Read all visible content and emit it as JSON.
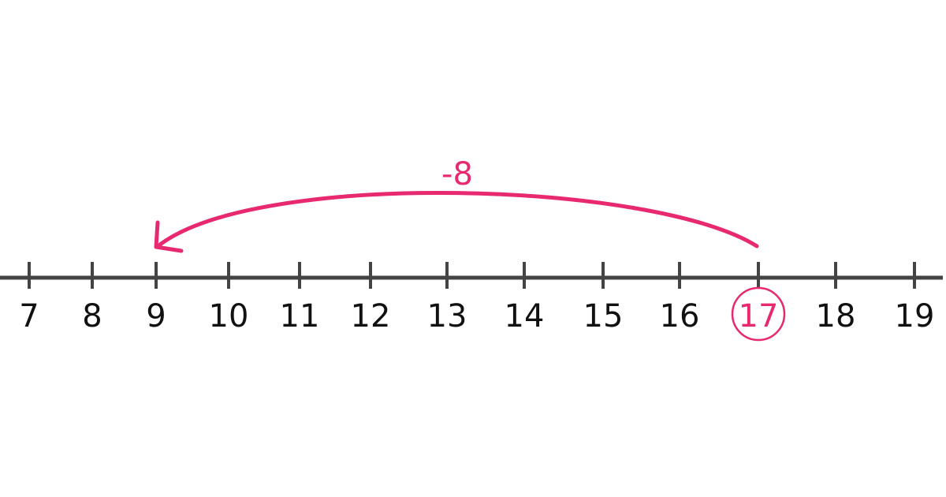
{
  "number_line": {
    "ticks": [
      "7",
      "8",
      "9",
      "10",
      "11",
      "12",
      "13",
      "14",
      "15",
      "16",
      "17",
      "18",
      "19"
    ],
    "start_value": 17,
    "end_value": 9,
    "highlighted": "17"
  },
  "jump": {
    "label": "-8",
    "from": 17,
    "to": 9,
    "direction": "left"
  },
  "colors": {
    "accent": "#e8286f",
    "line": "#444444",
    "text": "#111111"
  }
}
